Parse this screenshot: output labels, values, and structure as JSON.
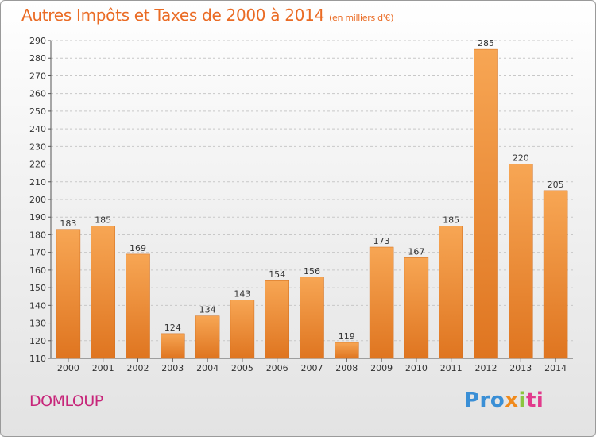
{
  "title": "Autres Impôts et Taxes de 2000 à 2014",
  "subtitle": "(en milliers d'€)",
  "commune": "DOMLOUP",
  "logo": {
    "p1": "Pro",
    "p2": "x",
    "p3": "i",
    "p4": "ti"
  },
  "chart_data": {
    "type": "bar",
    "categories": [
      "2000",
      "2001",
      "2002",
      "2003",
      "2004",
      "2005",
      "2006",
      "2007",
      "2008",
      "2009",
      "2010",
      "2011",
      "2012",
      "2013",
      "2014"
    ],
    "values": [
      183,
      185,
      169,
      124,
      134,
      143,
      154,
      156,
      119,
      173,
      167,
      185,
      285,
      220,
      205
    ],
    "ylim": [
      110,
      290
    ],
    "yticks": [
      110,
      120,
      130,
      140,
      150,
      160,
      170,
      180,
      190,
      200,
      210,
      220,
      230,
      240,
      250,
      260,
      270,
      280,
      290
    ],
    "grid": true,
    "bar_color": "#f28a2a",
    "title": "Autres Impôts et Taxes de 2000 à 2014",
    "subtitle": "(en milliers d'€)",
    "xlabel": "",
    "ylabel": ""
  }
}
